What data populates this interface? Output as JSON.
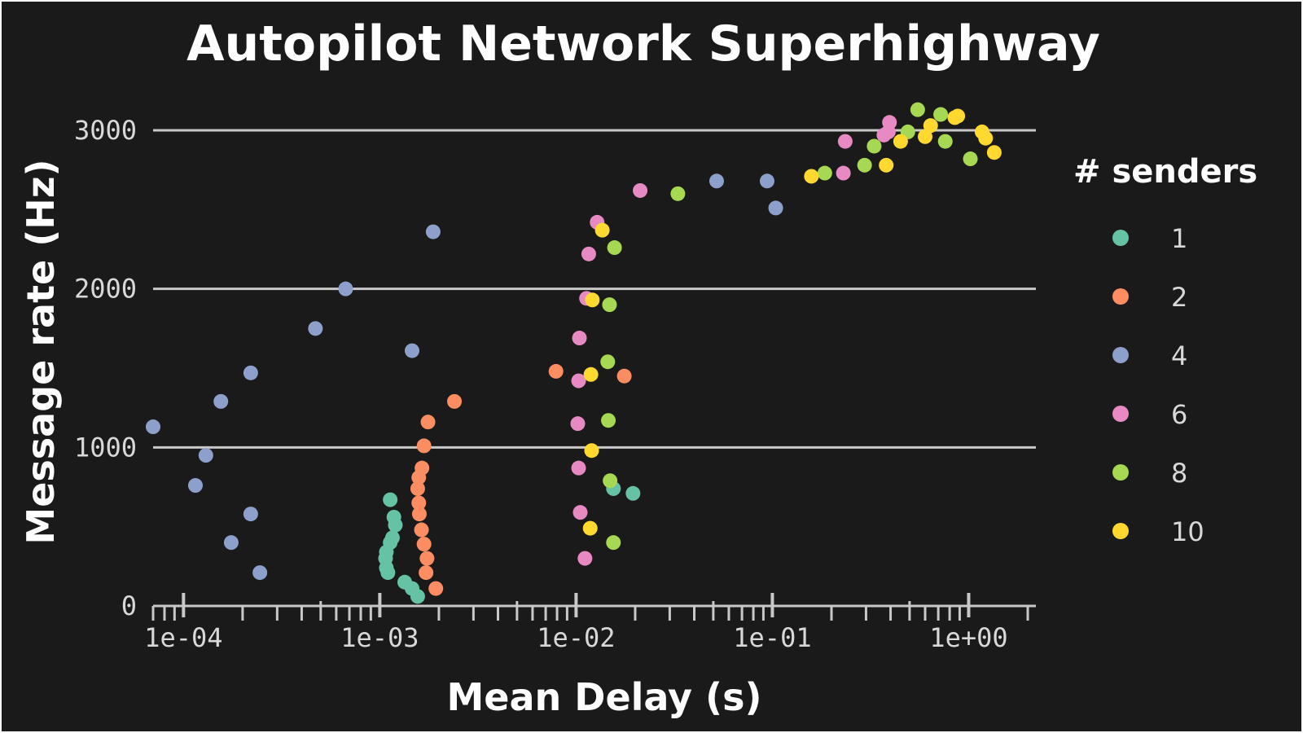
{
  "chart_data": {
    "type": "scatter",
    "title": "Autopilot Network Superhighway",
    "xlabel": "Mean Delay (s)",
    "ylabel": "Message rate (Hz)",
    "x_scale": "log10",
    "xlim": [
      7e-05,
      2.2
    ],
    "ylim": [
      0,
      3200
    ],
    "x_ticks": [
      0.0001,
      0.001,
      0.01,
      0.1,
      1
    ],
    "x_tick_labels": [
      "1e-04",
      "1e-03",
      "1e-02",
      "1e-01",
      "1e+00"
    ],
    "y_ticks": [
      0,
      1000,
      2000,
      3000
    ],
    "y_tick_labels": [
      "0",
      "1000",
      "2000",
      "3000"
    ],
    "grid": "horizontal",
    "legend": {
      "title": "# senders",
      "placement": "right"
    },
    "series": [
      {
        "name": "1",
        "color": "#66c2a5",
        "points": [
          [
            0.00113,
            670
          ],
          [
            0.00118,
            560
          ],
          [
            0.0012,
            510
          ],
          [
            0.00116,
            430
          ],
          [
            0.00113,
            400
          ],
          [
            0.00108,
            340
          ],
          [
            0.00107,
            300
          ],
          [
            0.00108,
            240
          ],
          [
            0.0011,
            210
          ],
          [
            0.00134,
            150
          ],
          [
            0.00146,
            110
          ],
          [
            0.00156,
            60
          ],
          [
            0.0155,
            740
          ],
          [
            0.0195,
            710
          ]
        ]
      },
      {
        "name": "2",
        "color": "#fc8d62",
        "points": [
          [
            0.0024,
            1290
          ],
          [
            0.00176,
            1160
          ],
          [
            0.00168,
            1010
          ],
          [
            0.00164,
            870
          ],
          [
            0.00158,
            810
          ],
          [
            0.00156,
            740
          ],
          [
            0.00158,
            650
          ],
          [
            0.00159,
            580
          ],
          [
            0.00163,
            480
          ],
          [
            0.00168,
            390
          ],
          [
            0.00174,
            300
          ],
          [
            0.00172,
            210
          ],
          [
            0.00193,
            110
          ],
          [
            0.0079,
            1480
          ],
          [
            0.0176,
            1450
          ]
        ]
      },
      {
        "name": "4",
        "color": "#8da0cb",
        "points": [
          [
            7e-05,
            1130
          ],
          [
            0.00013,
            950
          ],
          [
            0.000115,
            760
          ],
          [
            0.000175,
            400
          ],
          [
            0.000245,
            210
          ],
          [
            0.00022,
            580
          ],
          [
            0.000155,
            1290
          ],
          [
            0.00022,
            1470
          ],
          [
            0.00047,
            1750
          ],
          [
            0.00067,
            2000
          ],
          [
            0.00146,
            1610
          ],
          [
            0.00187,
            2360
          ],
          [
            0.052,
            2680
          ],
          [
            0.094,
            2680
          ],
          [
            0.104,
            2510
          ]
        ]
      },
      {
        "name": "6",
        "color": "#e78ac3",
        "points": [
          [
            0.0128,
            2420
          ],
          [
            0.0116,
            2220
          ],
          [
            0.0113,
            1940
          ],
          [
            0.0104,
            1690
          ],
          [
            0.0103,
            1420
          ],
          [
            0.0102,
            1150
          ],
          [
            0.0103,
            870
          ],
          [
            0.0105,
            590
          ],
          [
            0.0111,
            300
          ],
          [
            0.0212,
            2620
          ],
          [
            0.235,
            2930
          ],
          [
            0.23,
            2730
          ],
          [
            0.395,
            3050
          ],
          [
            0.37,
            2970
          ],
          [
            0.39,
            2990
          ]
        ]
      },
      {
        "name": "8",
        "color": "#a6d854",
        "points": [
          [
            0.0157,
            2260
          ],
          [
            0.0148,
            1900
          ],
          [
            0.0145,
            1540
          ],
          [
            0.0146,
            1170
          ],
          [
            0.0149,
            790
          ],
          [
            0.0155,
            400
          ],
          [
            0.033,
            2600
          ],
          [
            0.185,
            2730
          ],
          [
            0.295,
            2780
          ],
          [
            0.33,
            2900
          ],
          [
            0.49,
            2990
          ],
          [
            0.55,
            3130
          ],
          [
            0.72,
            3100
          ],
          [
            0.76,
            2930
          ],
          [
            1.02,
            2820
          ]
        ]
      },
      {
        "name": "10",
        "color": "#ffd92f",
        "points": [
          [
            0.0136,
            2370
          ],
          [
            0.0121,
            1930
          ],
          [
            0.0119,
            1460
          ],
          [
            0.012,
            980
          ],
          [
            0.0118,
            490
          ],
          [
            0.158,
            2710
          ],
          [
            0.38,
            2780
          ],
          [
            0.45,
            2930
          ],
          [
            0.6,
            2960
          ],
          [
            0.64,
            3030
          ],
          [
            0.85,
            3080
          ],
          [
            0.88,
            3090
          ],
          [
            1.17,
            2990
          ],
          [
            1.22,
            2950
          ],
          [
            1.35,
            2860
          ]
        ]
      }
    ]
  }
}
